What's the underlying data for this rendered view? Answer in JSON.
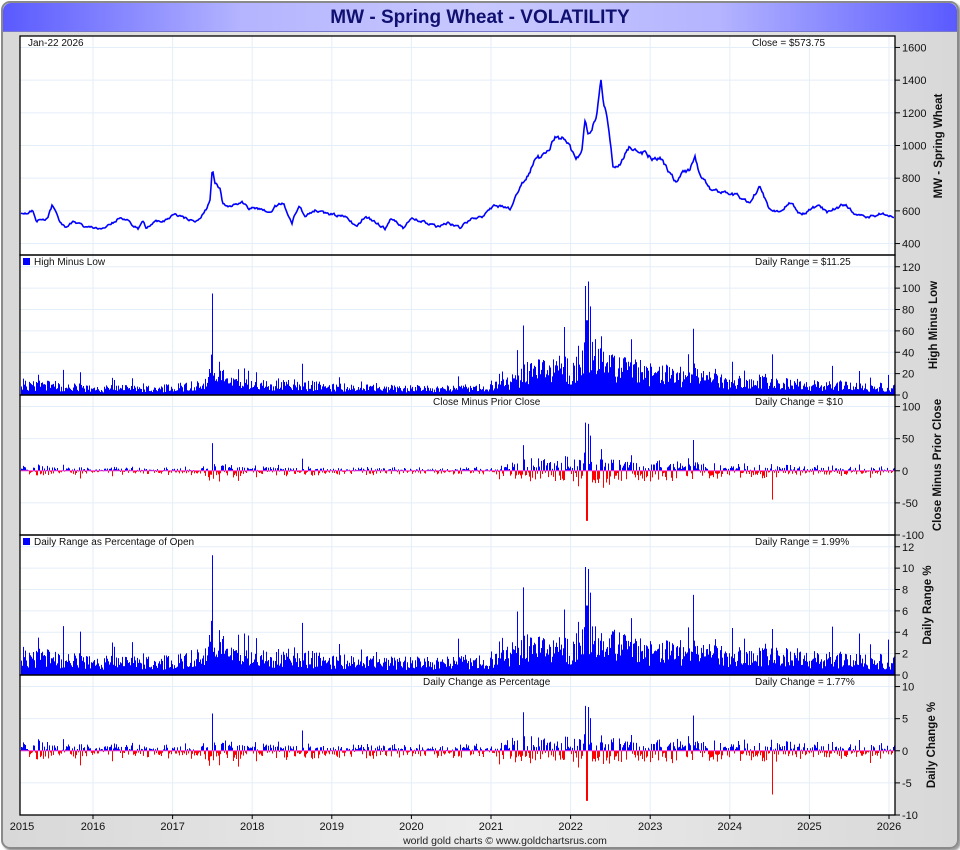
{
  "title": "MW  -  Spring Wheat - VOLATILITY",
  "footer": "world gold charts © www.goldchartsrus.com",
  "colors": {
    "up": "#0000ff",
    "down": "#ff0000",
    "price": "#0000ff",
    "zero": "#ff33cc",
    "grid": "#e4eef8"
  },
  "panels": {
    "price": {
      "date": "Jan-22  2026",
      "readout": "Close = $573.75",
      "axis_title": "MW  -  Spring Wheat"
    },
    "high_low": {
      "legend": "High Minus Low",
      "readout": "Daily Range = $11.25",
      "axis_title": "High Minus Low"
    },
    "close_change": {
      "legend": "Close Minus Prior Close",
      "readout": "Daily Change = $10",
      "axis_title": "Close Minus Prior Close"
    },
    "range_pct": {
      "legend": "Daily Range as Percentage of Open",
      "readout": "Daily Range = 1.99%",
      "axis_title": "Daily Range %"
    },
    "change_pct": {
      "legend": "Daily Change as Percentage",
      "readout": "Daily Change = 1.77%",
      "axis_title": "Daily Change %"
    }
  },
  "chart_data": {
    "type": "line",
    "title": "MW  -  Spring Wheat - VOLATILITY",
    "x_ticks": [
      "2015",
      "2016",
      "2017",
      "2018",
      "2019",
      "2020",
      "2021",
      "2022",
      "2023",
      "2024",
      "2025",
      "2026"
    ],
    "x_range": [
      2015.1,
      2026.07
    ],
    "axes": {
      "price": {
        "ticks": [
          400,
          600,
          800,
          1000,
          1200,
          1400,
          1600
        ],
        "ylim": [
          330,
          1670
        ]
      },
      "high_low": {
        "ticks": [
          0,
          20,
          40,
          60,
          80,
          100,
          120
        ],
        "ylim": [
          0,
          131
        ]
      },
      "close_change": {
        "ticks": [
          -100,
          -50,
          0,
          50,
          100
        ],
        "ylim": [
          -100,
          118
        ]
      },
      "range_pct": {
        "ticks": [
          0,
          2,
          4,
          6,
          8,
          10,
          12
        ],
        "ylim": [
          0,
          13.1
        ]
      },
      "change_pct": {
        "ticks": [
          -10,
          -5,
          0,
          5,
          10
        ],
        "ylim": [
          -10,
          11.8
        ]
      }
    },
    "price_series": [
      [
        2015.1,
        580
      ],
      [
        2015.25,
        600
      ],
      [
        2015.29,
        540
      ],
      [
        2015.43,
        557
      ],
      [
        2015.49,
        636
      ],
      [
        2015.59,
        528
      ],
      [
        2015.65,
        504
      ],
      [
        2015.77,
        540
      ],
      [
        2015.86,
        508
      ],
      [
        2016.03,
        498
      ],
      [
        2016.13,
        492
      ],
      [
        2016.23,
        520
      ],
      [
        2016.31,
        550
      ],
      [
        2016.42,
        553
      ],
      [
        2016.5,
        508
      ],
      [
        2016.57,
        490
      ],
      [
        2016.63,
        535
      ],
      [
        2016.67,
        498
      ],
      [
        2016.78,
        540
      ],
      [
        2016.86,
        528
      ],
      [
        2016.93,
        550
      ],
      [
        2017.04,
        580
      ],
      [
        2017.16,
        553
      ],
      [
        2017.28,
        528
      ],
      [
        2017.34,
        550
      ],
      [
        2017.43,
        612
      ],
      [
        2017.47,
        673
      ],
      [
        2017.5,
        870
      ],
      [
        2017.53,
        773
      ],
      [
        2017.6,
        735
      ],
      [
        2017.63,
        650
      ],
      [
        2017.7,
        630
      ],
      [
        2017.87,
        650
      ],
      [
        2017.95,
        620
      ],
      [
        2018.12,
        615
      ],
      [
        2018.22,
        590
      ],
      [
        2018.29,
        626
      ],
      [
        2018.39,
        650
      ],
      [
        2018.5,
        533
      ],
      [
        2018.59,
        637
      ],
      [
        2018.66,
        570
      ],
      [
        2018.79,
        600
      ],
      [
        2018.95,
        582
      ],
      [
        2019.1,
        570
      ],
      [
        2019.2,
        557
      ],
      [
        2019.31,
        498
      ],
      [
        2019.42,
        570
      ],
      [
        2019.52,
        540
      ],
      [
        2019.67,
        492
      ],
      [
        2019.75,
        560
      ],
      [
        2019.9,
        492
      ],
      [
        2020.0,
        560
      ],
      [
        2020.17,
        528
      ],
      [
        2020.32,
        504
      ],
      [
        2020.46,
        528
      ],
      [
        2020.61,
        498
      ],
      [
        2020.74,
        550
      ],
      [
        2020.9,
        559
      ],
      [
        2021.03,
        630
      ],
      [
        2021.24,
        612
      ],
      [
        2021.32,
        692
      ],
      [
        2021.39,
        773
      ],
      [
        2021.49,
        835
      ],
      [
        2021.55,
        918
      ],
      [
        2021.68,
        937
      ],
      [
        2021.82,
        1060
      ],
      [
        2021.95,
        1030
      ],
      [
        2022.06,
        918
      ],
      [
        2022.14,
        957
      ],
      [
        2022.18,
        1163
      ],
      [
        2022.22,
        1060
      ],
      [
        2022.33,
        1182
      ],
      [
        2022.38,
        1406
      ],
      [
        2022.41,
        1263
      ],
      [
        2022.46,
        1163
      ],
      [
        2022.5,
        1018
      ],
      [
        2022.53,
        875
      ],
      [
        2022.62,
        896
      ],
      [
        2022.75,
        998
      ],
      [
        2022.91,
        957
      ],
      [
        2023.04,
        918
      ],
      [
        2023.12,
        926
      ],
      [
        2023.21,
        857
      ],
      [
        2023.33,
        773
      ],
      [
        2023.42,
        835
      ],
      [
        2023.5,
        857
      ],
      [
        2023.56,
        937
      ],
      [
        2023.63,
        814
      ],
      [
        2023.75,
        735
      ],
      [
        2023.92,
        712
      ],
      [
        2024.09,
        692
      ],
      [
        2024.25,
        651
      ],
      [
        2024.38,
        753
      ],
      [
        2024.48,
        620
      ],
      [
        2024.63,
        590
      ],
      [
        2024.76,
        651
      ],
      [
        2024.9,
        570
      ],
      [
        2025.11,
        635
      ],
      [
        2025.22,
        590
      ],
      [
        2025.45,
        641
      ],
      [
        2025.55,
        590
      ],
      [
        2025.72,
        559
      ],
      [
        2025.89,
        580
      ],
      [
        2026.06,
        573.75
      ]
    ],
    "typical_daily_range_pct": [
      [
        2015.1,
        2.4
      ],
      [
        2015.6,
        2.0
      ],
      [
        2016.0,
        1.6
      ],
      [
        2017.0,
        1.6
      ],
      [
        2017.4,
        2.4
      ],
      [
        2017.5,
        5.5
      ],
      [
        2017.65,
        2.4
      ],
      [
        2018.0,
        2.0
      ],
      [
        2018.5,
        2.3
      ],
      [
        2019.0,
        1.7
      ],
      [
        2020.0,
        1.5
      ],
      [
        2020.9,
        1.7
      ],
      [
        2021.3,
        2.8
      ],
      [
        2021.5,
        3.6
      ],
      [
        2022.0,
        3.0
      ],
      [
        2022.2,
        4.2
      ],
      [
        2022.6,
        3.6
      ],
      [
        2023.0,
        2.8
      ],
      [
        2023.6,
        3.0
      ],
      [
        2024.0,
        2.3
      ],
      [
        2024.5,
        2.6
      ],
      [
        2025.0,
        2.0
      ],
      [
        2026.06,
        1.7
      ]
    ],
    "spikes": [
      {
        "year": 2017.5,
        "high_low": 95,
        "change": 43,
        "range_pct": 11.2,
        "change_pct": 5.8
      },
      {
        "year": 2021.4,
        "high_low": 65,
        "change": 40,
        "range_pct": 8.2,
        "change_pct": 6.0
      },
      {
        "year": 2022.18,
        "high_low": 102,
        "change": 75,
        "range_pct": 10.1,
        "change_pct": 7.0
      },
      {
        "year": 2022.2,
        "high_low": 70,
        "change": -78,
        "range_pct": 6.5,
        "change_pct": -7.8
      },
      {
        "year": 2023.54,
        "high_low": 62,
        "change": 48,
        "range_pct": 7.5,
        "change_pct": 5.5
      },
      {
        "year": 2024.53,
        "high_low": 38,
        "change": -45,
        "range_pct": 4.3,
        "change_pct": -6.8
      }
    ]
  }
}
